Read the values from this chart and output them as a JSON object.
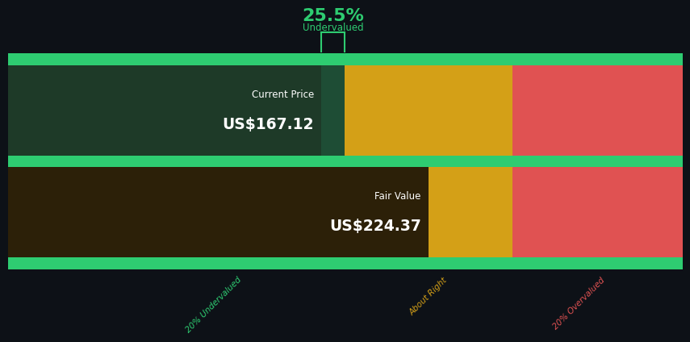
{
  "background_color": "#0d1117",
  "current_price": 167.12,
  "fair_value": 224.37,
  "undervalued_pct": "25.5%",
  "undervalued_label": "Undervalued",
  "current_price_label": "Current Price",
  "current_price_text": "US$167.12",
  "fair_value_label": "Fair Value",
  "fair_value_text": "US$224.37",
  "bar_colors": {
    "green_light": "#2ecc71",
    "green_dark": "#1e4d35",
    "yellow": "#d4a017",
    "red": "#e05252"
  },
  "cp_box_color": "#1e3a28",
  "fv_box_color": "#2c2008",
  "label_20u": "20% Undervalued",
  "label_ar": "About Right",
  "label_20o": "20% Overvalued",
  "label_color_u": "#2ecc71",
  "label_color_ar": "#d4a017",
  "label_color_o": "#e05252",
  "chart_max": 360.0,
  "fv_low_ratio": 0.8,
  "fv_high_ratio": 1.2
}
